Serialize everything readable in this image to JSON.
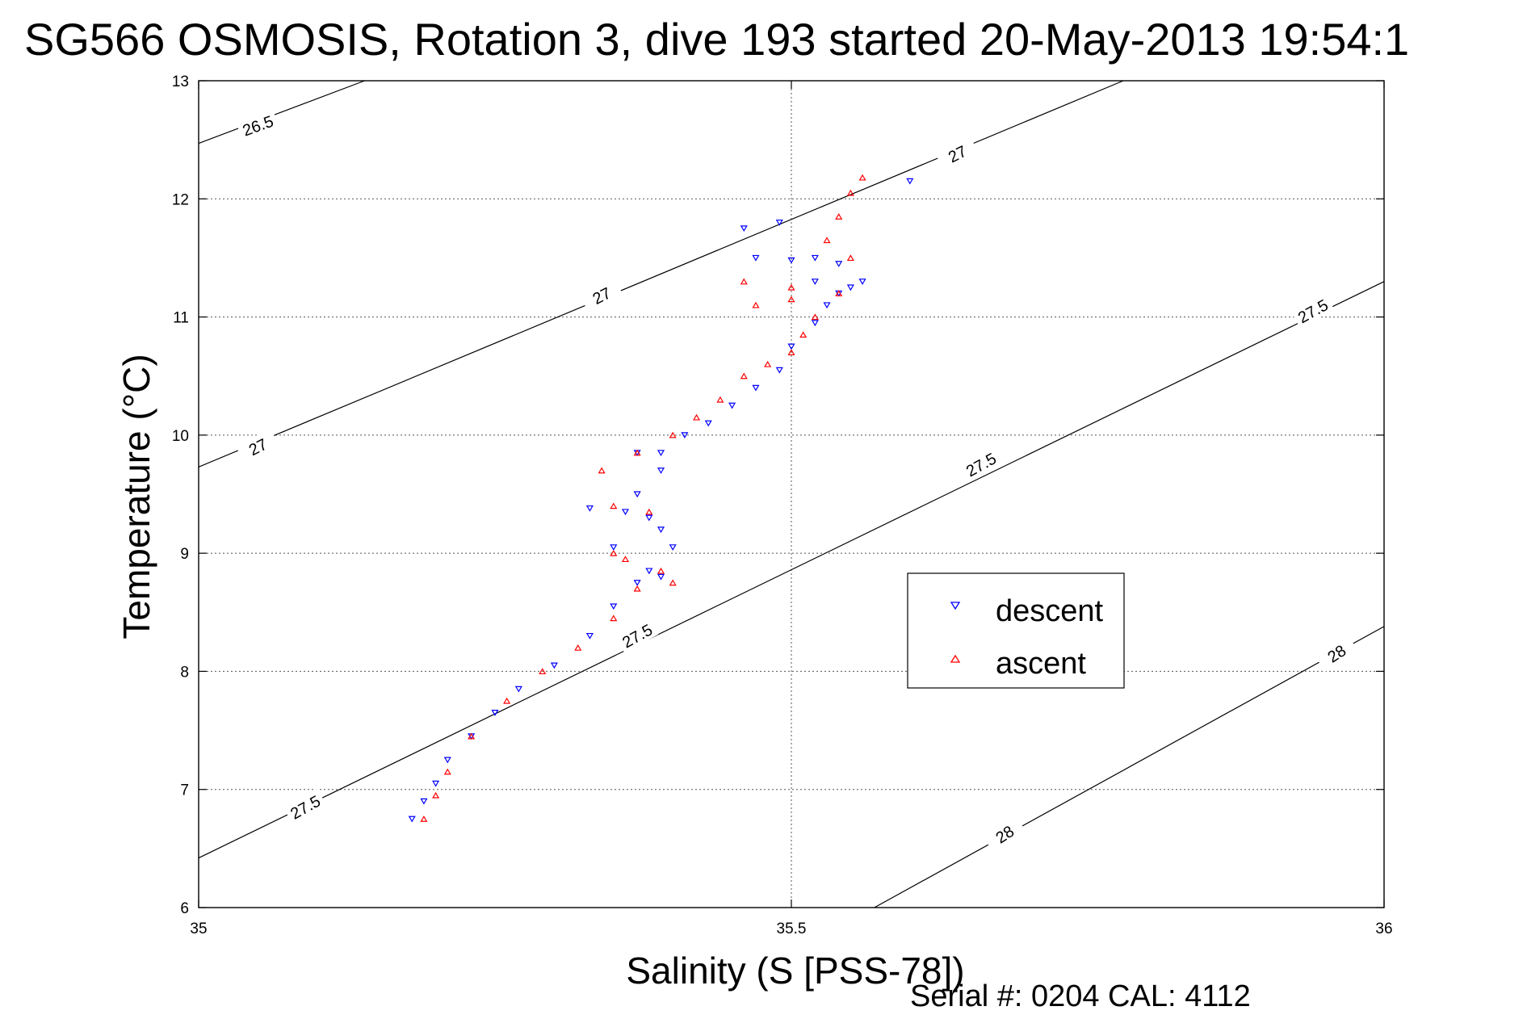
{
  "chart_data": {
    "type": "scatter",
    "title": "SG566 OSMOSIS, Rotation 3, dive 193 started 20-May-2013 19:54:1",
    "xlabel": "Salinity (S [PSS-78])",
    "ylabel": "Temperature (°C)",
    "xlim": [
      35,
      36
    ],
    "ylim": [
      6,
      13
    ],
    "xticks": [
      "35",
      "35.5",
      "36"
    ],
    "yticks": [
      "6",
      "7",
      "8",
      "9",
      "10",
      "11",
      "12",
      "13"
    ],
    "grid": true,
    "legend": {
      "position": "center-right",
      "entries": [
        "descent",
        "ascent"
      ]
    },
    "contours": [
      {
        "label": "26.5",
        "points": [
          [
            35.0,
            12.47
          ],
          [
            35.14,
            13.0
          ]
        ]
      },
      {
        "label": "27",
        "points": [
          [
            35.0,
            9.73
          ],
          [
            35.78,
            13.0
          ]
        ]
      },
      {
        "label": "27.5",
        "points": [
          [
            35.0,
            6.42
          ],
          [
            36.0,
            11.3
          ]
        ]
      },
      {
        "label": "28",
        "points": [
          [
            35.57,
            6.0
          ],
          [
            36.0,
            8.38
          ]
        ]
      }
    ],
    "contour_labels": [
      {
        "text": "26.5",
        "x": 35.05,
        "y": 12.62,
        "angle": -20
      },
      {
        "text": "27",
        "x": 35.05,
        "y": 9.9,
        "angle": -27
      },
      {
        "text": "27",
        "x": 35.34,
        "y": 11.18,
        "angle": -27
      },
      {
        "text": "27",
        "x": 35.64,
        "y": 12.38,
        "angle": -27
      },
      {
        "text": "27.5",
        "x": 35.09,
        "y": 6.85,
        "angle": -29
      },
      {
        "text": "27.5",
        "x": 35.37,
        "y": 8.3,
        "angle": -29
      },
      {
        "text": "27.5",
        "x": 35.66,
        "y": 9.75,
        "angle": -29
      },
      {
        "text": "27.5",
        "x": 35.94,
        "y": 11.05,
        "angle": -29
      },
      {
        "text": "28",
        "x": 35.68,
        "y": 6.62,
        "angle": -33
      },
      {
        "text": "28",
        "x": 35.96,
        "y": 8.15,
        "angle": -33
      }
    ],
    "series": [
      {
        "name": "descent",
        "marker": "triangle-down",
        "x": [
          35.18,
          35.19,
          35.2,
          35.21,
          35.23,
          35.25,
          35.27,
          35.3,
          35.33,
          35.35,
          35.37,
          35.38,
          35.39,
          35.4,
          35.39,
          35.38,
          35.36,
          35.37,
          35.39,
          35.37,
          35.33,
          35.35,
          35.39,
          35.41,
          35.43,
          35.45,
          35.47,
          35.49,
          35.5,
          35.52,
          35.53,
          35.55,
          35.56,
          35.54,
          35.52,
          35.5,
          35.47,
          35.46,
          35.49,
          35.52,
          35.54,
          35.6
        ],
        "y": [
          6.75,
          6.9,
          7.05,
          7.25,
          7.45,
          7.65,
          7.85,
          8.05,
          8.3,
          8.55,
          8.75,
          8.85,
          8.8,
          9.05,
          9.2,
          9.3,
          9.35,
          9.5,
          9.7,
          9.85,
          9.38,
          9.05,
          9.85,
          10.0,
          10.1,
          10.25,
          10.4,
          10.55,
          10.75,
          10.95,
          11.1,
          11.25,
          11.3,
          11.2,
          11.3,
          11.48,
          11.5,
          11.75,
          11.8,
          11.5,
          11.45,
          12.15
        ]
      },
      {
        "name": "ascent",
        "marker": "triangle-up",
        "x": [
          35.19,
          35.2,
          35.21,
          35.23,
          35.26,
          35.29,
          35.32,
          35.35,
          35.37,
          35.36,
          35.35,
          35.39,
          35.4,
          35.38,
          35.35,
          35.34,
          35.37,
          35.4,
          35.42,
          35.44,
          35.46,
          35.48,
          35.5,
          35.51,
          35.52,
          35.5,
          35.47,
          35.46,
          35.5,
          35.54,
          35.55,
          35.53,
          35.54,
          35.55,
          35.56
        ],
        "y": [
          6.75,
          6.95,
          7.15,
          7.45,
          7.75,
          8.0,
          8.2,
          8.45,
          8.7,
          8.95,
          9.0,
          8.85,
          8.75,
          9.35,
          9.4,
          9.7,
          9.85,
          10.0,
          10.15,
          10.3,
          10.5,
          10.6,
          10.7,
          10.85,
          11.0,
          11.15,
          11.1,
          11.3,
          11.25,
          11.2,
          11.5,
          11.65,
          11.85,
          12.05,
          12.18
        ]
      }
    ]
  },
  "footer": {
    "serial_text": "Serial #: 0204  CAL: 4112"
  },
  "colors": {
    "descent": "#0000ff",
    "ascent": "#ff0000",
    "axes": "#000000",
    "background": "#ffffff"
  }
}
